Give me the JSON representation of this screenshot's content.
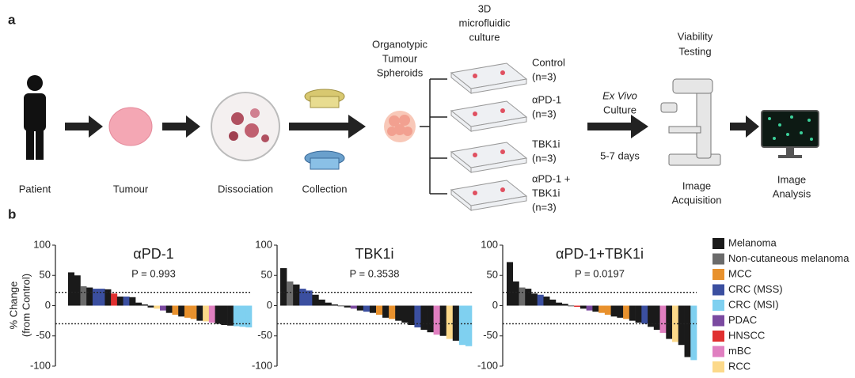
{
  "panel_a": {
    "label": "a",
    "patient": "Patient",
    "tumour": "Tumour",
    "dissociation": "Dissociation",
    "collection": "Collection",
    "spheroids": [
      "Organotypic",
      "Tumour",
      "Spheroids"
    ],
    "culture3d": [
      "3D",
      "microfluidic",
      "culture"
    ],
    "conditions": [
      [
        "Control",
        "(n=3)"
      ],
      [
        "αPD-1",
        "(n=3)"
      ],
      [
        "TBK1i",
        "(n=3)"
      ],
      [
        "αPD-1 +",
        "TBK1i",
        "(n=3)"
      ]
    ],
    "ex_vivo": [
      "Ex Vivo",
      "Culture"
    ],
    "days": "5-7 days",
    "viability": [
      "Viability",
      "Testing"
    ],
    "acquisition": [
      "Image",
      "Acquisition"
    ],
    "analysis": [
      "Image",
      "Analysis"
    ]
  },
  "panel_b": {
    "label": "b",
    "legend": [
      {
        "name": "Melanoma",
        "color": "#1a1a1a"
      },
      {
        "name": "Non-cutaneous melanoma",
        "color": "#6b6b6b"
      },
      {
        "name": "MCC",
        "color": "#e8912d"
      },
      {
        "name": "CRC (MSS)",
        "color": "#3b4fa0"
      },
      {
        "name": "CRC (MSI)",
        "color": "#7fd0f0"
      },
      {
        "name": "PDAC",
        "color": "#7b4aa0"
      },
      {
        "name": "HNSCC",
        "color": "#e03030"
      },
      {
        "name": "mBC",
        "color": "#e07fc0"
      },
      {
        "name": "RCC",
        "color": "#fcd98a"
      }
    ]
  },
  "chart_data": [
    {
      "type": "bar",
      "title": "αPD-1",
      "subtitle": "P = 0.993",
      "ylabel": [
        "% Change",
        "(from Control)"
      ],
      "ylim": [
        -100,
        100
      ],
      "yticks": [
        100,
        50,
        0,
        -50,
        -100
      ],
      "ref_lines": [
        22,
        -30
      ],
      "values": [
        55,
        50,
        32,
        30,
        28,
        28,
        27,
        20,
        15,
        15,
        14,
        5,
        2,
        -3,
        -5,
        -8,
        -12,
        -15,
        -18,
        -20,
        -22,
        -25,
        -26,
        -28,
        -30,
        -32,
        -33,
        -34,
        -35,
        -36
      ],
      "colors": [
        "#1a1a1a",
        "#1a1a1a",
        "#6b6b6b",
        "#1a1a1a",
        "#3b4fa0",
        "#3b4fa0",
        "#1a1a1a",
        "#e03030",
        "#1a1a1a",
        "#3b4fa0",
        "#1a1a1a",
        "#1a1a1a",
        "#1a1a1a",
        "#1a1a1a",
        "#fcd98a",
        "#7b4aa0",
        "#1a1a1a",
        "#e8912d",
        "#1a1a1a",
        "#e8912d",
        "#e8912d",
        "#1a1a1a",
        "#fcd98a",
        "#e07fc0",
        "#1a1a1a",
        "#1a1a1a",
        "#1a1a1a",
        "#7fd0f0",
        "#7fd0f0",
        "#7fd0f0"
      ]
    },
    {
      "type": "bar",
      "title": "TBK1i",
      "subtitle": "P = 0.3538",
      "ylim": [
        -100,
        100
      ],
      "yticks": [
        100,
        50,
        0,
        -50,
        -100
      ],
      "ref_lines": [
        22,
        -30
      ],
      "values": [
        62,
        40,
        35,
        28,
        25,
        18,
        10,
        5,
        2,
        -1,
        -3,
        -5,
        -8,
        -10,
        -12,
        -15,
        -20,
        -22,
        -25,
        -28,
        -32,
        -36,
        -40,
        -44,
        -48,
        -50,
        -55,
        -58,
        -65,
        -67
      ],
      "colors": [
        "#1a1a1a",
        "#6b6b6b",
        "#1a1a1a",
        "#3b4fa0",
        "#3b4fa0",
        "#1a1a1a",
        "#1a1a1a",
        "#1a1a1a",
        "#1a1a1a",
        "#1a1a1a",
        "#1a1a1a",
        "#7b4aa0",
        "#1a1a1a",
        "#3b4fa0",
        "#1a1a1a",
        "#e8912d",
        "#1a1a1a",
        "#e8912d",
        "#1a1a1a",
        "#1a1a1a",
        "#1a1a1a",
        "#3b4fa0",
        "#1a1a1a",
        "#1a1a1a",
        "#e07fc0",
        "#1a1a1a",
        "#fcd98a",
        "#1a1a1a",
        "#7fd0f0",
        "#7fd0f0"
      ]
    },
    {
      "type": "bar",
      "title": "αPD-1+TBK1i",
      "subtitle": "P = 0.0197",
      "ylim": [
        -100,
        100
      ],
      "yticks": [
        100,
        50,
        0,
        -50,
        -100
      ],
      "ref_lines": [
        22,
        -30
      ],
      "values": [
        72,
        40,
        30,
        28,
        20,
        18,
        15,
        10,
        5,
        3,
        -1,
        -2,
        -5,
        -8,
        -10,
        -12,
        -15,
        -18,
        -20,
        -22,
        -25,
        -28,
        -30,
        -35,
        -40,
        -45,
        -55,
        -60,
        -65,
        -85,
        -90
      ],
      "colors": [
        "#1a1a1a",
        "#1a1a1a",
        "#6b6b6b",
        "#1a1a1a",
        "#1a1a1a",
        "#3b4fa0",
        "#1a1a1a",
        "#1a1a1a",
        "#1a1a1a",
        "#1a1a1a",
        "#1a1a1a",
        "#e03030",
        "#1a1a1a",
        "#7b4aa0",
        "#1a1a1a",
        "#e8912d",
        "#e8912d",
        "#1a1a1a",
        "#1a1a1a",
        "#e8912d",
        "#1a1a1a",
        "#1a1a1a",
        "#3b4fa0",
        "#1a1a1a",
        "#1a1a1a",
        "#e07fc0",
        "#1a1a1a",
        "#fcd98a",
        "#1a1a1a",
        "#1a1a1a",
        "#7fd0f0"
      ]
    }
  ]
}
